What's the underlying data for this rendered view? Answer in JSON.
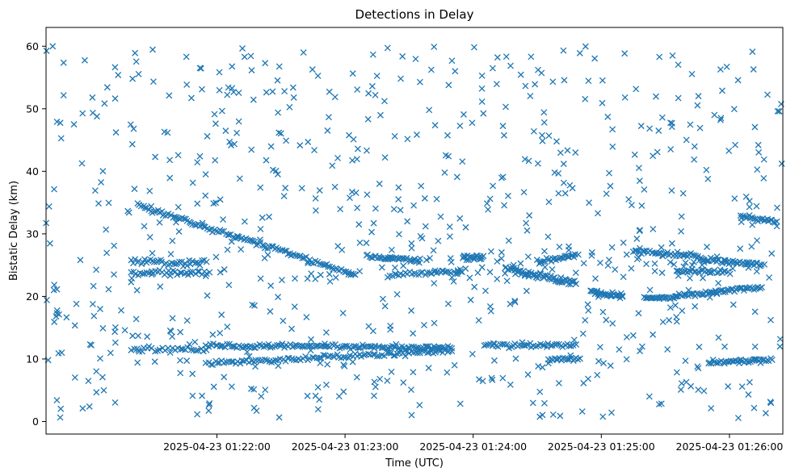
{
  "chart_data": {
    "type": "scatter",
    "title": "Detections in Delay",
    "xlabel": "Time (UTC)",
    "ylabel": "Bistatic Delay (km)",
    "marker": "x",
    "color": "#1f77b4",
    "grid": false,
    "xlim": [
      "2025-04-23 01:20:40",
      "2025-04-23 01:26:25"
    ],
    "ylim": [
      -2,
      63
    ],
    "x_ticks": [
      {
        "value": "2025-04-23 01:22:00",
        "label": "2025-04-23 01:22:00"
      },
      {
        "value": "2025-04-23 01:23:00",
        "label": "2025-04-23 01:23:00"
      },
      {
        "value": "2025-04-23 01:24:00",
        "label": "2025-04-23 01:24:00"
      },
      {
        "value": "2025-04-23 01:25:00",
        "label": "2025-04-23 01:25:00"
      },
      {
        "value": "2025-04-23 01:26:00",
        "label": "2025-04-23 01:26:00"
      }
    ],
    "y_ticks": [
      0,
      10,
      20,
      30,
      40,
      50,
      60
    ],
    "series": [
      {
        "name": "",
        "tracks": [
          {
            "t_start": "2025-04-23 01:21:23",
            "t_end": "2025-04-23 01:23:05",
            "y_start": 34.5,
            "y_end": 23.5,
            "count": 120,
            "jitter": 0.3
          },
          {
            "t_start": "2025-04-23 01:21:20",
            "t_end": "2025-04-23 01:21:55",
            "y_start": 25.5,
            "y_end": 25.5,
            "count": 40,
            "jitter": 0.5
          },
          {
            "t_start": "2025-04-23 01:21:20",
            "t_end": "2025-04-23 01:21:55",
            "y_start": 23.8,
            "y_end": 23.8,
            "count": 35,
            "jitter": 0.4
          },
          {
            "t_start": "2025-04-23 01:21:20",
            "t_end": "2025-04-23 01:21:55",
            "y_start": 11.5,
            "y_end": 11.5,
            "count": 30,
            "jitter": 0.4
          },
          {
            "t_start": "2025-04-23 01:21:55",
            "t_end": "2025-04-23 01:23:50",
            "y_start": 12.2,
            "y_end": 11.8,
            "count": 130,
            "jitter": 0.3
          },
          {
            "t_start": "2025-04-23 01:21:55",
            "t_end": "2025-04-23 01:23:50",
            "y_start": 9.3,
            "y_end": 11.3,
            "count": 110,
            "jitter": 0.3
          },
          {
            "t_start": "2025-04-23 01:23:10",
            "t_end": "2025-04-23 01:23:35",
            "y_start": 26.3,
            "y_end": 25.8,
            "count": 35,
            "jitter": 0.3
          },
          {
            "t_start": "2025-04-23 01:23:20",
            "t_end": "2025-04-23 01:23:55",
            "y_start": 23.4,
            "y_end": 24.0,
            "count": 35,
            "jitter": 0.3
          },
          {
            "t_start": "2025-04-23 01:23:55",
            "t_end": "2025-04-23 01:24:05",
            "y_start": 26.3,
            "y_end": 26.3,
            "count": 20,
            "jitter": 0.3
          },
          {
            "t_start": "2025-04-23 01:24:05",
            "t_end": "2025-04-23 01:24:48",
            "y_start": 12.2,
            "y_end": 12.2,
            "count": 45,
            "jitter": 0.3
          },
          {
            "t_start": "2025-04-23 01:24:35",
            "t_end": "2025-04-23 01:24:50",
            "y_start": 10.0,
            "y_end": 10.0,
            "count": 20,
            "jitter": 0.3
          },
          {
            "t_start": "2025-04-23 01:24:15",
            "t_end": "2025-04-23 01:24:48",
            "y_start": 24.5,
            "y_end": 22.0,
            "count": 60,
            "jitter": 0.4
          },
          {
            "t_start": "2025-04-23 01:24:30",
            "t_end": "2025-04-23 01:24:48",
            "y_start": 25.5,
            "y_end": 26.5,
            "count": 25,
            "jitter": 0.3
          },
          {
            "t_start": "2025-04-23 01:24:55",
            "t_end": "2025-04-23 01:25:10",
            "y_start": 20.8,
            "y_end": 20.0,
            "count": 30,
            "jitter": 0.3
          },
          {
            "t_start": "2025-04-23 01:25:15",
            "t_end": "2025-04-23 01:25:45",
            "y_start": 27.2,
            "y_end": 26.5,
            "count": 40,
            "jitter": 0.3
          },
          {
            "t_start": "2025-04-23 01:25:20",
            "t_end": "2025-04-23 01:25:35",
            "y_start": 19.8,
            "y_end": 19.8,
            "count": 25,
            "jitter": 0.2
          },
          {
            "t_start": "2025-04-23 01:25:35",
            "t_end": "2025-04-23 01:26:15",
            "y_start": 20.0,
            "y_end": 21.5,
            "count": 55,
            "jitter": 0.3
          },
          {
            "t_start": "2025-04-23 01:25:45",
            "t_end": "2025-04-23 01:26:15",
            "y_start": 26.0,
            "y_end": 25.0,
            "count": 45,
            "jitter": 0.3
          },
          {
            "t_start": "2025-04-23 01:25:35",
            "t_end": "2025-04-23 01:26:00",
            "y_start": 24.0,
            "y_end": 24.0,
            "count": 30,
            "jitter": 0.3
          },
          {
            "t_start": "2025-04-23 01:25:50",
            "t_end": "2025-04-23 01:26:20",
            "y_start": 9.5,
            "y_end": 9.8,
            "count": 40,
            "jitter": 0.3
          },
          {
            "t_start": "2025-04-23 01:26:05",
            "t_end": "2025-04-23 01:26:22",
            "y_start": 32.8,
            "y_end": 32.0,
            "count": 25,
            "jitter": 0.3
          },
          {
            "t_start": "2025-04-23 01:23:20",
            "t_end": "2025-04-23 01:26:20",
            "y_start": 25.0,
            "y_end": 25.0,
            "count": 50,
            "jitter": 2.0
          }
        ],
        "scatter": {
          "t_start": "2025-04-23 01:20:40",
          "t_end": "2025-04-23 01:26:25",
          "y_min": 0.5,
          "y_max": 60,
          "count": 720
        }
      }
    ]
  }
}
